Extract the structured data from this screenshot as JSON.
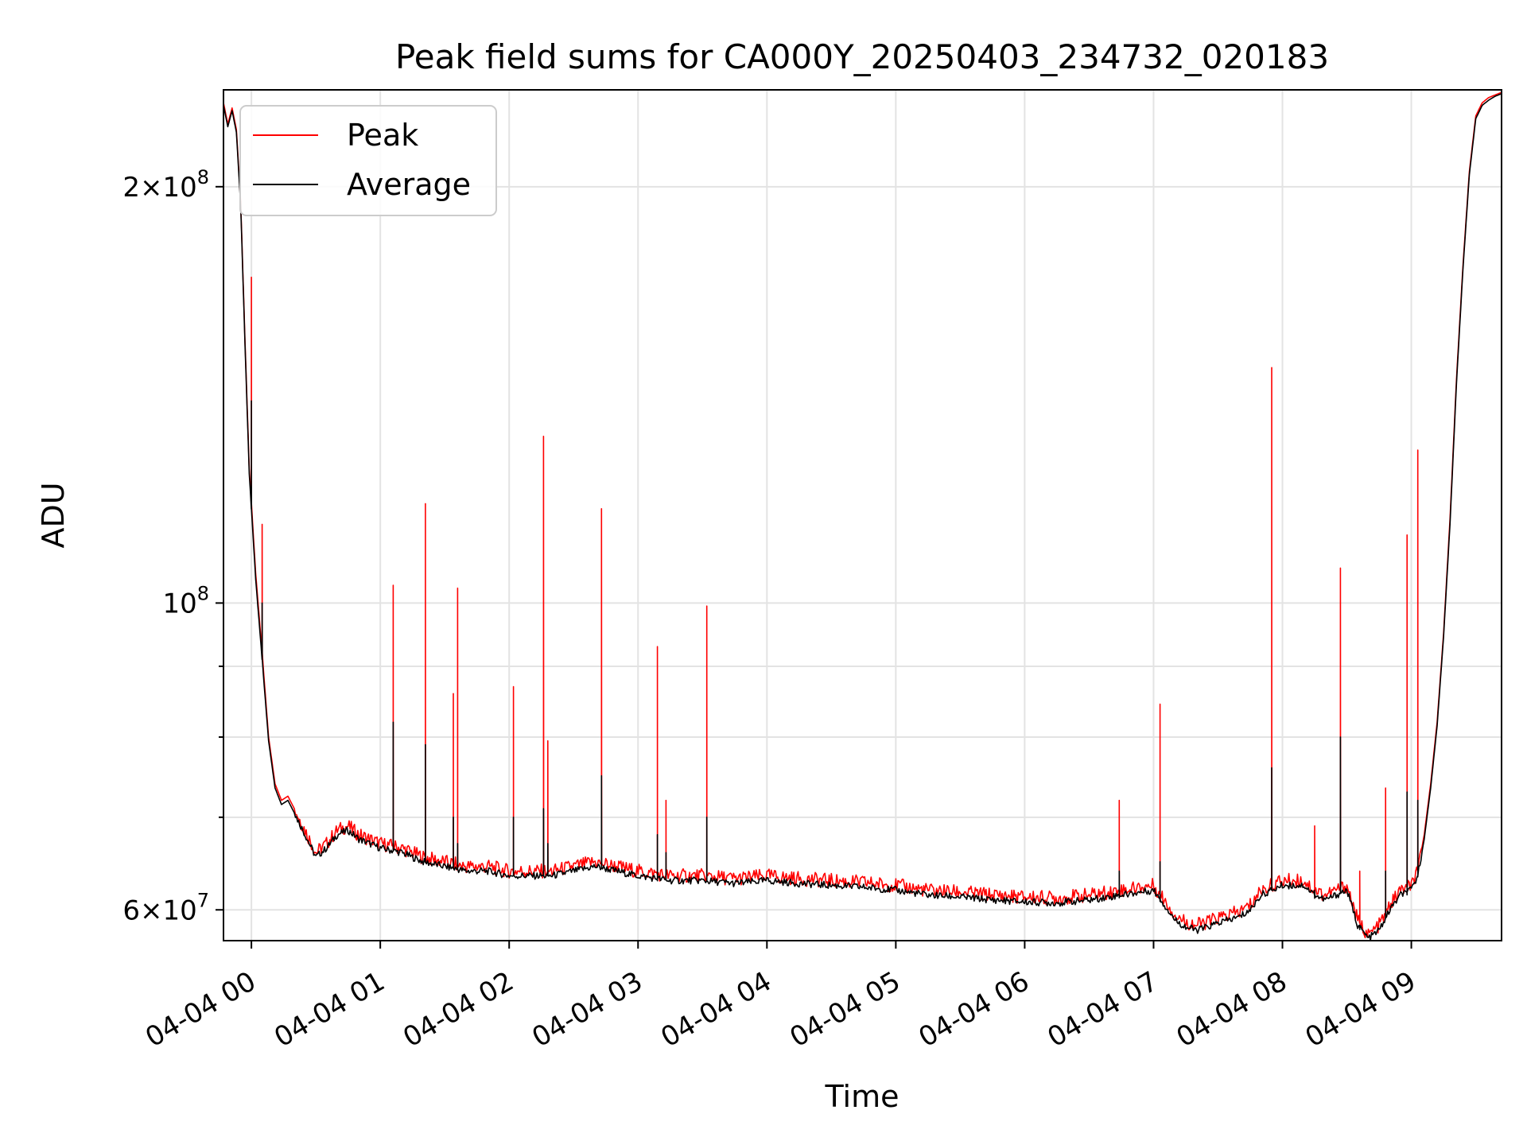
{
  "chart_data": {
    "type": "line",
    "title": "Peak field sums for CA000Y_20250403_234732_020183",
    "xlabel": "Time",
    "ylabel": "ADU",
    "yscale": "log",
    "xlim": [
      "2025-04-03 23:47",
      "2025-04-04 09:42"
    ],
    "ylim": [
      57000000,
      235000000
    ],
    "grid": true,
    "legend_position": "top-left",
    "x_ticks": [
      "04-04 00",
      "04-04 01",
      "04-04 02",
      "04-04 03",
      "04-04 04",
      "04-04 05",
      "04-04 06",
      "04-04 07",
      "04-04 08",
      "04-04 09"
    ],
    "y_ticks": [
      {
        "value": 60000000,
        "base": "6×10",
        "exp": "7"
      },
      {
        "value": 100000000,
        "base": "10",
        "exp": "8"
      },
      {
        "value": 200000000,
        "base": "2×10",
        "exp": "8"
      }
    ],
    "x": [
      "23:47",
      "23:49",
      "23:51",
      "23:53",
      "23:55",
      "23:57",
      "23:59",
      "00:02",
      "00:05",
      "00:08",
      "00:11",
      "00:14",
      "00:17",
      "00:20",
      "00:25",
      "00:30",
      "00:35",
      "00:40",
      "00:45",
      "00:50",
      "00:55",
      "01:00",
      "01:10",
      "01:20",
      "01:30",
      "01:40",
      "01:50",
      "02:00",
      "02:10",
      "02:20",
      "02:30",
      "02:40",
      "02:50",
      "03:00",
      "03:15",
      "03:30",
      "03:45",
      "04:00",
      "04:15",
      "04:30",
      "04:45",
      "05:00",
      "05:15",
      "05:30",
      "05:45",
      "06:00",
      "06:15",
      "06:30",
      "06:45",
      "07:00",
      "07:05",
      "07:10",
      "07:15",
      "07:20",
      "07:25",
      "07:30",
      "07:35",
      "07:40",
      "07:45",
      "07:50",
      "07:55",
      "08:00",
      "08:10",
      "08:15",
      "08:20",
      "08:25",
      "08:30",
      "08:35",
      "08:40",
      "08:45",
      "08:50",
      "08:55",
      "09:00",
      "09:03",
      "09:06",
      "09:09",
      "09:12",
      "09:15",
      "09:18",
      "09:21",
      "09:24",
      "09:27",
      "09:30",
      "09:33",
      "09:36",
      "09:39",
      "09:42"
    ],
    "series": [
      {
        "name": "Peak",
        "color": "#ff0000",
        "values": [
          230000000,
          222000000,
          228000000,
          220000000,
          195000000,
          155000000,
          125000000,
          105000000,
          92000000,
          80000000,
          74000000,
          72000000,
          72500000,
          71000000,
          68500000,
          66000000,
          67000000,
          68500000,
          69000000,
          68000000,
          67500000,
          67000000,
          66500000,
          65500000,
          65000000,
          64500000,
          64500000,
          64000000,
          64000000,
          64000000,
          64500000,
          65000000,
          64500000,
          64000000,
          63500000,
          63500000,
          63200000,
          63500000,
          63200000,
          63000000,
          62800000,
          62500000,
          62000000,
          61800000,
          61500000,
          61300000,
          61200000,
          61500000,
          62000000,
          62500000,
          61000000,
          59500000,
          58800000,
          58500000,
          58800000,
          59200000,
          59500000,
          59800000,
          60500000,
          62000000,
          62500000,
          63000000,
          63000000,
          62000000,
          61500000,
          62000000,
          62500000,
          59000000,
          57500000,
          58500000,
          60500000,
          62000000,
          62500000,
          64000000,
          68000000,
          74000000,
          82000000,
          95000000,
          115000000,
          145000000,
          175000000,
          205000000,
          225000000,
          230000000,
          232000000,
          233000000,
          234000000
        ]
      },
      {
        "name": "Average",
        "color": "#000000",
        "values": [
          229000000,
          221000000,
          227000000,
          219000000,
          194000000,
          154000000,
          124000000,
          104000000,
          91000000,
          79500000,
          73500000,
          71500000,
          72000000,
          70500000,
          68000000,
          65500000,
          66500000,
          68000000,
          68500000,
          67500000,
          67000000,
          66500000,
          66000000,
          65000000,
          64500000,
          64000000,
          64000000,
          63500000,
          63500000,
          63500000,
          64000000,
          64500000,
          64000000,
          63500000,
          63000000,
          63000000,
          62700000,
          63000000,
          62700000,
          62500000,
          62300000,
          62000000,
          61500000,
          61300000,
          61000000,
          60800000,
          60700000,
          61000000,
          61500000,
          62000000,
          60500000,
          59000000,
          58300000,
          58000000,
          58300000,
          58700000,
          59000000,
          59300000,
          60000000,
          61500000,
          62000000,
          62500000,
          62500000,
          61500000,
          61000000,
          61500000,
          62000000,
          58500000,
          57200000,
          58000000,
          60000000,
          61500000,
          62000000,
          63500000,
          67500000,
          73500000,
          81500000,
          94500000,
          114000000,
          144000000,
          174000000,
          204000000,
          224000000,
          229000000,
          231000000,
          232500000,
          233500000
        ]
      }
    ],
    "spikes": [
      {
        "x": "00:00",
        "peak": 172000000,
        "avg": 140000000
      },
      {
        "x": "00:05",
        "peak": 114000000,
        "avg": 100000000
      },
      {
        "x": "01:06",
        "peak": 103000000,
        "avg": 82000000
      },
      {
        "x": "01:21",
        "peak": 118000000,
        "avg": 79000000
      },
      {
        "x": "01:34",
        "peak": 86000000,
        "avg": 70000000
      },
      {
        "x": "01:36",
        "peak": 102500000,
        "avg": 67000000
      },
      {
        "x": "02:02",
        "peak": 87000000,
        "avg": 70000000
      },
      {
        "x": "02:16",
        "peak": 132000000,
        "avg": 71000000
      },
      {
        "x": "02:18",
        "peak": 79500000,
        "avg": 67000000
      },
      {
        "x": "02:43",
        "peak": 117000000,
        "avg": 75000000
      },
      {
        "x": "03:09",
        "peak": 93000000,
        "avg": 68000000
      },
      {
        "x": "03:13",
        "peak": 72000000,
        "avg": 66000000
      },
      {
        "x": "03:32",
        "peak": 99500000,
        "avg": 70000000
      },
      {
        "x": "06:44",
        "peak": 72000000,
        "avg": 64000000
      },
      {
        "x": "07:03",
        "peak": 84500000,
        "avg": 65000000
      },
      {
        "x": "07:55",
        "peak": 148000000,
        "avg": 76000000
      },
      {
        "x": "08:15",
        "peak": 69000000,
        "avg": 62000000
      },
      {
        "x": "08:27",
        "peak": 106000000,
        "avg": 80000000
      },
      {
        "x": "08:36",
        "peak": 64000000,
        "avg": 58500000
      },
      {
        "x": "08:48",
        "peak": 73500000,
        "avg": 64000000
      },
      {
        "x": "08:58",
        "peak": 112000000,
        "avg": 73000000
      },
      {
        "x": "09:03",
        "peak": 129000000,
        "avg": 72000000
      }
    ]
  }
}
